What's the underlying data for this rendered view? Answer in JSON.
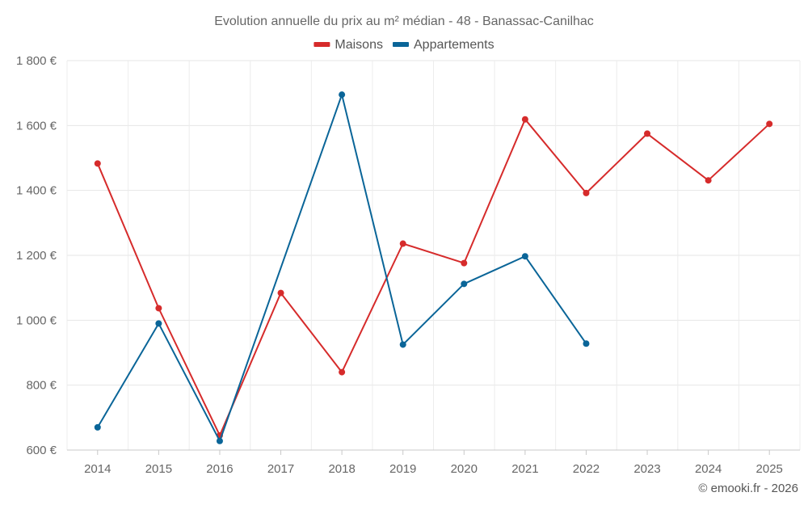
{
  "chart_data": {
    "type": "line",
    "title": "Evolution annuelle du prix au m² médian - 48 - Banassac-Canilhac",
    "categories": [
      "2014",
      "2015",
      "2016",
      "2017",
      "2018",
      "2019",
      "2020",
      "2021",
      "2022",
      "2023",
      "2024",
      "2025"
    ],
    "series": [
      {
        "name": "Maisons",
        "color": "#d62b2b",
        "values": [
          1483,
          1037,
          645,
          1084,
          840,
          1236,
          1176,
          1619,
          1392,
          1575,
          1431,
          1605
        ]
      },
      {
        "name": "Appartements",
        "color": "#0a6598",
        "values": [
          670,
          990,
          628,
          null,
          1695,
          925,
          1112,
          1197,
          928,
          null,
          null,
          null
        ]
      }
    ],
    "ylim": [
      600,
      1800
    ],
    "yticks": [
      600,
      800,
      1000,
      1200,
      1400,
      1600,
      1800
    ],
    "ytick_labels": [
      "600 €",
      "800 €",
      "1 000 €",
      "1 200 €",
      "1 400 €",
      "1 600 €",
      "1 800 €"
    ],
    "xlabel": "",
    "ylabel": "",
    "grid": true,
    "legend_position": "top-center"
  },
  "credit": "© emooki.fr - 2026"
}
